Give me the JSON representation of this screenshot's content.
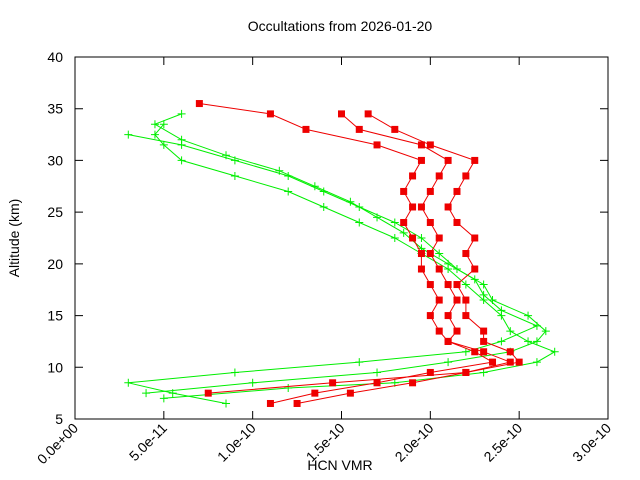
{
  "chart_data": {
    "type": "line",
    "title": "Occultations from 2026-01-20",
    "x_label": "HCN VMR",
    "y_label": "Altitude (km)",
    "xlim": [
      0,
      3e-10
    ],
    "ylim": [
      5,
      40
    ],
    "xticks": [
      {
        "value": 0,
        "label": "0.0e+00"
      },
      {
        "value": 5e-11,
        "label": "5.0e-11"
      },
      {
        "value": 1e-10,
        "label": "1.0e-10"
      },
      {
        "value": 1.5e-10,
        "label": "1.5e-10"
      },
      {
        "value": 2e-10,
        "label": "2.0e-10"
      },
      {
        "value": 2.5e-10,
        "label": "2.5e-10"
      },
      {
        "value": 3e-10,
        "label": "3.0e-10"
      }
    ],
    "yticks": [
      5,
      10,
      15,
      20,
      25,
      30,
      35,
      40
    ],
    "series": [
      {
        "color": "#00ee00",
        "marker": "plus",
        "x": [
          5e-11,
          1.2e-10,
          1.8e-10,
          2.3e-10,
          2.6e-10,
          2.7e-10,
          2.55e-10,
          2.45e-10,
          2.4e-10,
          2.3e-10,
          2.2e-10,
          2.1e-10,
          1.95e-10,
          1.8e-10,
          1.6e-10,
          1.4e-10,
          1.2e-10,
          9e-11,
          6e-11,
          5e-11,
          4.5e-11,
          5e-11
        ],
        "values": [
          7,
          8,
          8.5,
          9.5,
          10.5,
          11.5,
          12.5,
          13.5,
          15,
          16.5,
          18,
          19.5,
          21,
          22.5,
          24,
          25.5,
          27,
          28.5,
          30,
          31.5,
          32.5,
          33.5
        ]
      },
      {
        "color": "#00ee00",
        "marker": "plus",
        "x": [
          8.5e-11,
          5.5e-11,
          3e-11,
          9e-11,
          1.6e-10,
          2.2e-10,
          2.4e-10,
          2.6e-10,
          2.4e-10,
          2.3e-10,
          2.25e-10,
          2.1e-10,
          1.95e-10,
          1.85e-10,
          1.7e-10,
          1.55e-10,
          1.35e-10,
          1.15e-10,
          8.5e-11,
          6e-11,
          4.5e-11,
          6e-11
        ],
        "values": [
          6.5,
          7.5,
          8.5,
          9.5,
          10.5,
          11.5,
          12.5,
          14,
          15.5,
          17,
          18.5,
          20,
          21.5,
          23,
          24.5,
          26,
          27.5,
          29,
          30.5,
          32,
          33.5,
          34.5
        ]
      },
      {
        "color": "#00ee00",
        "marker": "plus",
        "x": [
          4e-11,
          1e-10,
          1.7e-10,
          2.1e-10,
          2.45e-10,
          2.6e-10,
          2.65e-10,
          2.55e-10,
          2.35e-10,
          2.3e-10,
          2.15e-10,
          2.05e-10,
          1.95e-10,
          1.8e-10,
          1.6e-10,
          1.4e-10,
          1.2e-10,
          9e-11,
          6e-11,
          3e-11
        ],
        "values": [
          7.5,
          8.5,
          9.5,
          10.5,
          11.5,
          12.5,
          13.5,
          15,
          16.5,
          18,
          19.5,
          21,
          22.5,
          24,
          25.5,
          27,
          28.5,
          30,
          31.5,
          32.5
        ]
      },
      {
        "color": "#ee0000",
        "marker": "square",
        "x": [
          7.5e-11,
          1.45e-10,
          2.2e-10,
          2.45e-10,
          2.3e-10,
          2.1e-10,
          2.05e-10,
          2e-10,
          2.05e-10,
          2e-10,
          1.95e-10,
          1.95e-10,
          1.9e-10,
          1.85e-10,
          1.9e-10,
          1.85e-10,
          1.9e-10,
          1.95e-10,
          1.7e-10,
          1.3e-10,
          1.1e-10,
          7e-11
        ],
        "values": [
          7.5,
          8.5,
          9.5,
          10.5,
          11.5,
          12.5,
          13.5,
          15,
          16.5,
          18,
          19.5,
          21,
          22.5,
          24,
          25.5,
          27,
          28.5,
          30,
          31.5,
          33,
          34.5,
          35.5
        ]
      },
      {
        "color": "#ee0000",
        "marker": "square",
        "x": [
          1.1e-10,
          1.35e-10,
          1.7e-10,
          2e-10,
          2.35e-10,
          2.25e-10,
          2.1e-10,
          2.15e-10,
          2.1e-10,
          2.15e-10,
          2.1e-10,
          2.05e-10,
          2e-10,
          2.05e-10,
          2e-10,
          1.95e-10,
          2e-10,
          2.05e-10,
          2.1e-10,
          1.95e-10,
          1.6e-10,
          1.5e-10
        ],
        "values": [
          6.5,
          7.5,
          8.5,
          9.5,
          10.5,
          11.5,
          12.5,
          13.5,
          15,
          16.5,
          18,
          19.5,
          21,
          22.5,
          24,
          25.5,
          27,
          28.5,
          30,
          31.5,
          33,
          34.5
        ]
      },
      {
        "color": "#ee0000",
        "marker": "square",
        "x": [
          1.25e-10,
          1.55e-10,
          1.9e-10,
          2.2e-10,
          2.5e-10,
          2.45e-10,
          2.3e-10,
          2.3e-10,
          2.2e-10,
          2.2e-10,
          2.15e-10,
          2.25e-10,
          2.2e-10,
          2.25e-10,
          2.15e-10,
          2.1e-10,
          2.15e-10,
          2.2e-10,
          2.25e-10,
          2e-10,
          1.8e-10,
          1.65e-10
        ],
        "values": [
          6.5,
          7.5,
          8.5,
          9.5,
          10.5,
          11.5,
          12.5,
          13.5,
          15,
          16.5,
          18,
          19.5,
          21,
          22.5,
          24,
          25.5,
          27,
          28.5,
          30,
          31.5,
          33,
          34.5
        ]
      }
    ]
  }
}
